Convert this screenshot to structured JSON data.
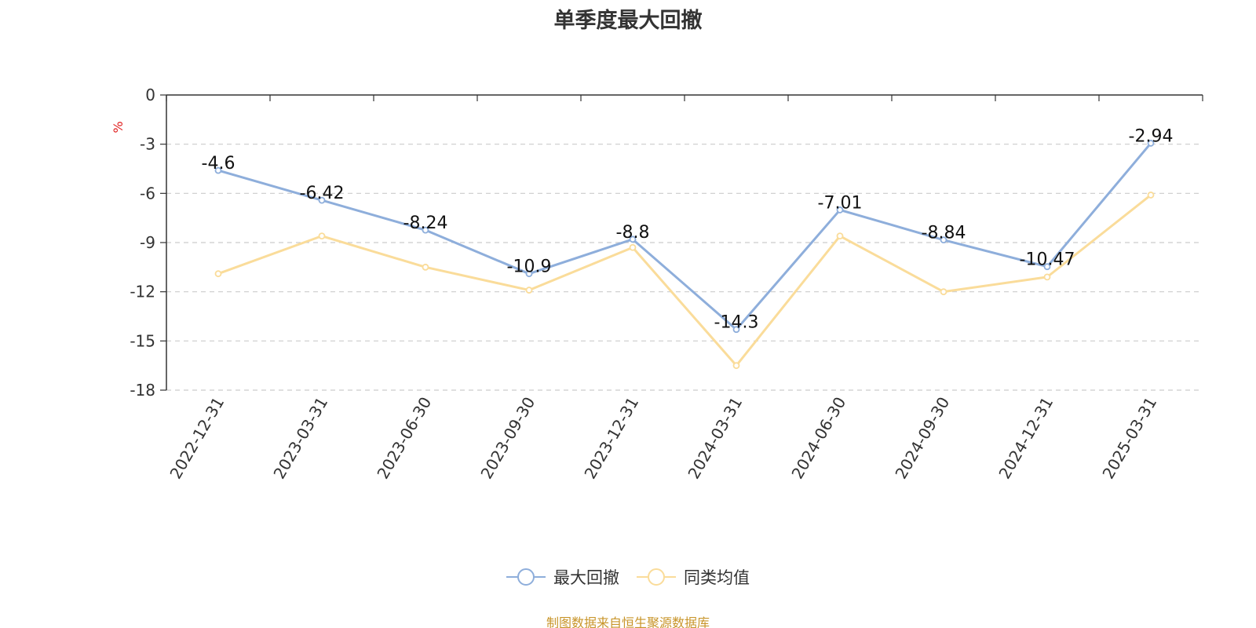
{
  "chart_data": {
    "type": "line",
    "title": "单季度最大回撤",
    "ylabel": "%",
    "ylim": [
      -18,
      0
    ],
    "yticks": [
      0,
      -3,
      -6,
      -9,
      -12,
      -15,
      -18
    ],
    "categories": [
      "2022-12-31",
      "2023-03-31",
      "2023-06-30",
      "2023-09-30",
      "2023-12-31",
      "2024-03-31",
      "2024-06-30",
      "2024-09-30",
      "2024-12-31",
      "2025-03-31"
    ],
    "series": [
      {
        "name": "最大回撤",
        "color": "#8eaedb",
        "values": [
          -4.6,
          -6.42,
          -8.24,
          -10.9,
          -8.8,
          -14.3,
          -7.01,
          -8.84,
          -10.47,
          -2.94
        ],
        "labels": [
          "-4.6",
          "-6.42",
          "-8.24",
          "-10.9",
          "-8.8",
          "-14.3",
          "-7.01",
          "-8.84",
          "-10.47",
          "-2.94"
        ]
      },
      {
        "name": "同类均值",
        "color": "#fadc9a",
        "values": [
          -10.9,
          -8.6,
          -10.5,
          -11.9,
          -9.3,
          -16.5,
          -8.6,
          -12.0,
          -11.1,
          -6.1
        ]
      }
    ],
    "grid": "horizontal-dashed",
    "legend_position": "bottom-center",
    "ylabel_color": "#e02020"
  },
  "source_note": "制图数据来自恒生聚源数据库"
}
